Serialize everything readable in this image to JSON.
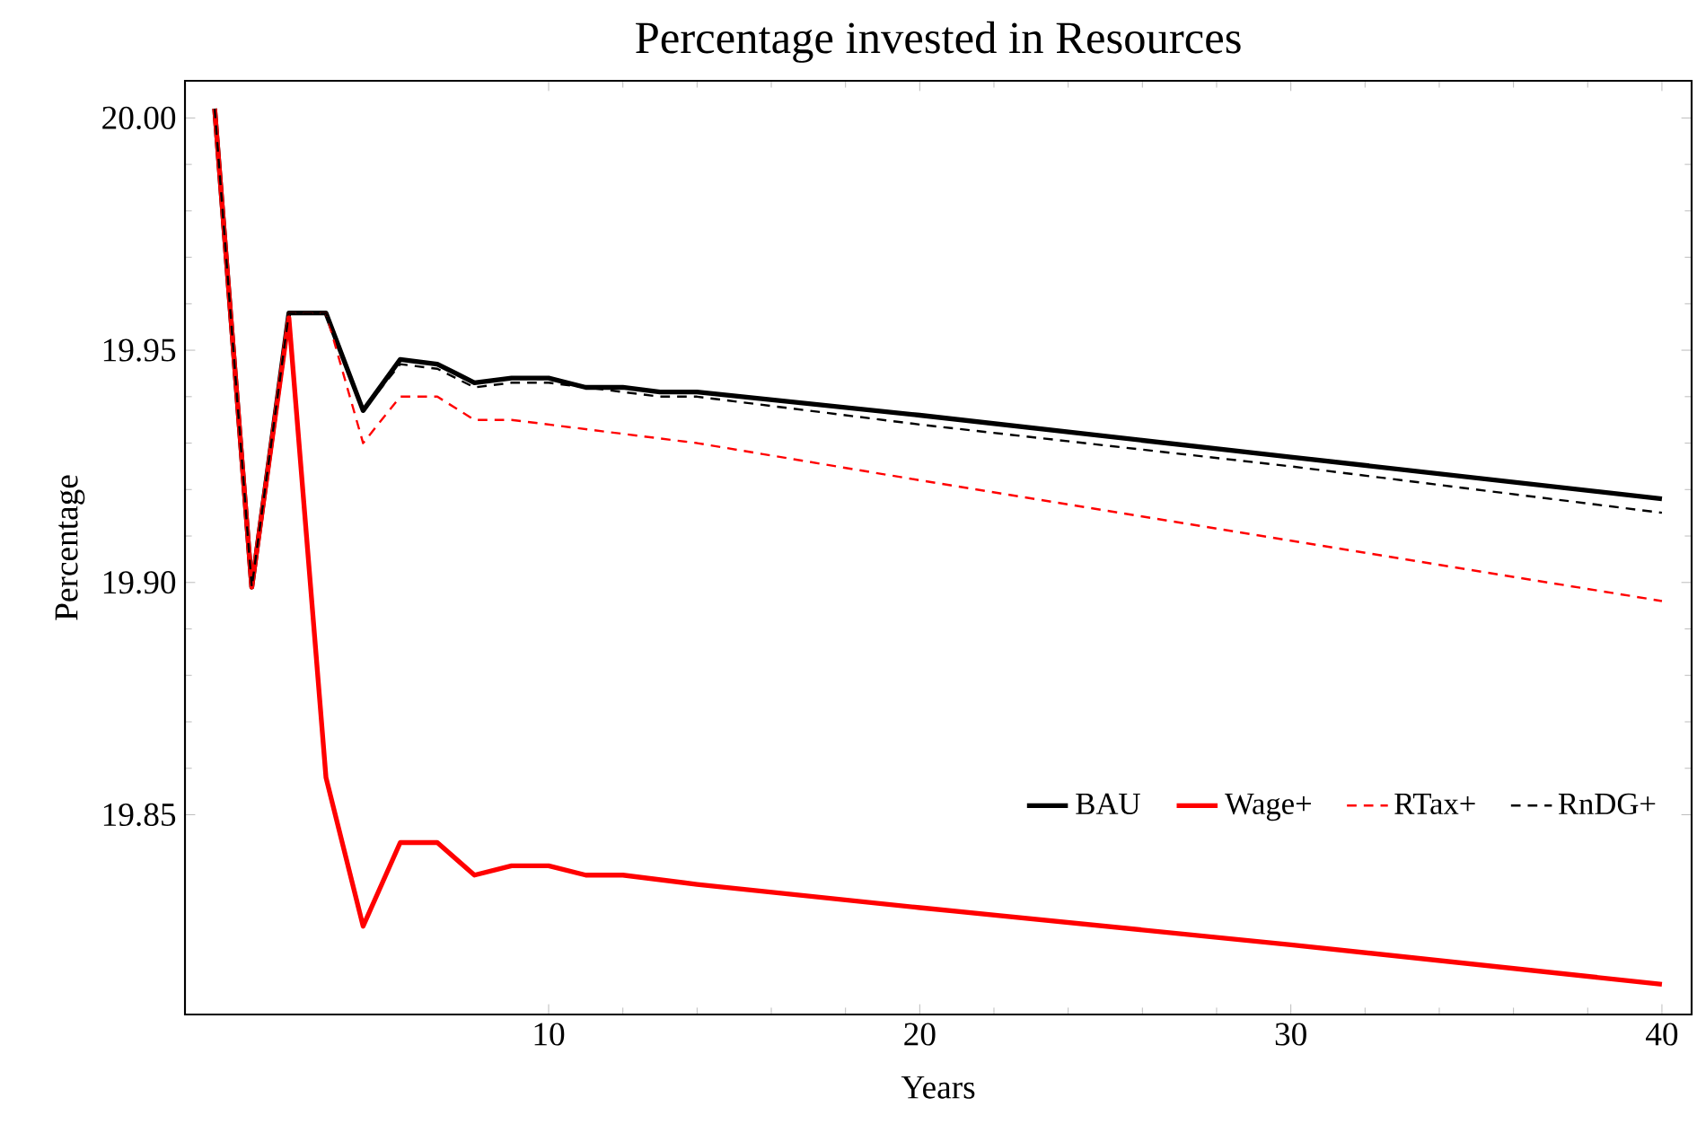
{
  "chart_data": {
    "type": "line",
    "title": "Percentage invested in Resources",
    "xlabel": "Years",
    "ylabel": "Percentage",
    "x": [
      1,
      2,
      3,
      4,
      5,
      6,
      7,
      8,
      9,
      10,
      11,
      12,
      13,
      14,
      20,
      30,
      40
    ],
    "series": [
      {
        "name": "BAU",
        "color": "#000000",
        "line_style": "solid",
        "values": [
          20.002,
          19.899,
          19.958,
          19.958,
          19.937,
          19.948,
          19.947,
          19.943,
          19.944,
          19.944,
          19.942,
          19.942,
          19.941,
          19.941,
          19.936,
          19.927,
          19.918
        ]
      },
      {
        "name": "Wage+",
        "color": "#ff0000",
        "line_style": "solid",
        "values": [
          20.002,
          19.899,
          19.957,
          19.858,
          19.826,
          19.844,
          19.844,
          19.837,
          19.839,
          19.839,
          19.837,
          19.837,
          19.836,
          19.835,
          19.83,
          19.822,
          19.8135
        ]
      },
      {
        "name": "RTax+",
        "color": "#ff0000",
        "line_style": "dashed",
        "values": [
          20.002,
          19.899,
          19.958,
          19.958,
          19.93,
          19.94,
          19.94,
          19.935,
          19.935,
          19.934,
          19.933,
          19.932,
          19.931,
          19.93,
          19.922,
          19.909,
          19.896
        ]
      },
      {
        "name": "RnDG+",
        "color": "#000000",
        "line_style": "dashed",
        "values": [
          20.002,
          19.899,
          19.958,
          19.958,
          19.937,
          19.947,
          19.946,
          19.942,
          19.943,
          19.943,
          19.942,
          19.941,
          19.94,
          19.94,
          19.934,
          19.925,
          19.915
        ]
      }
    ],
    "xlim": [
      0.2,
      40.8
    ],
    "ylim": [
      19.807,
      20.008
    ],
    "xticks": [
      10,
      20,
      30,
      40
    ],
    "yticks": [
      19.85,
      {
        "value": 19.9,
        "label": "19.90"
      },
      19.95,
      {
        "value": 20.0,
        "label": "20.00"
      }
    ],
    "legend": "bottom right",
    "grid": false,
    "marker": "none"
  }
}
